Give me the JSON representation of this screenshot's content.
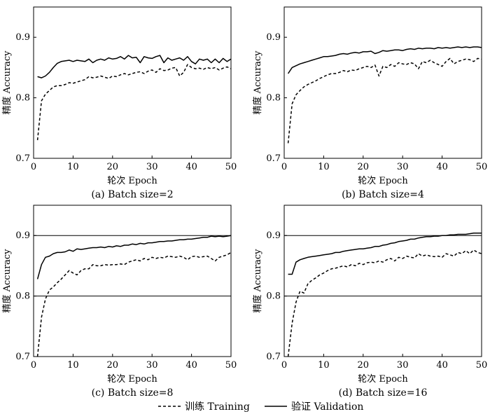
{
  "chart_data": [
    {
      "type": "line",
      "caption": "(a) Batch size=2",
      "xlabel": "轮次 Epoch",
      "ylabel": "精度 Accuracy",
      "xlim": [
        0,
        50
      ],
      "ylim": [
        0.7,
        0.95
      ],
      "xticks": [
        0,
        10,
        20,
        30,
        40,
        50
      ],
      "yticks": [
        0.7,
        0.8,
        0.9
      ],
      "ref_lines": [],
      "x": [
        1,
        2,
        3,
        4,
        5,
        6,
        7,
        8,
        9,
        10,
        11,
        12,
        13,
        14,
        15,
        16,
        17,
        18,
        19,
        20,
        21,
        22,
        23,
        24,
        25,
        26,
        27,
        28,
        29,
        30,
        31,
        32,
        33,
        34,
        35,
        36,
        37,
        38,
        39,
        40,
        41,
        42,
        43,
        44,
        45,
        46,
        47,
        48,
        49,
        50
      ],
      "series": [
        {
          "name": "训练 Training",
          "style": "dashed",
          "values": [
            0.73,
            0.795,
            0.806,
            0.812,
            0.818,
            0.82,
            0.82,
            0.822,
            0.825,
            0.824,
            0.826,
            0.828,
            0.83,
            0.835,
            0.833,
            0.834,
            0.836,
            0.834,
            0.832,
            0.836,
            0.835,
            0.838,
            0.84,
            0.838,
            0.84,
            0.842,
            0.843,
            0.84,
            0.844,
            0.846,
            0.842,
            0.848,
            0.845,
            0.846,
            0.849,
            0.85,
            0.836,
            0.842,
            0.855,
            0.85,
            0.848,
            0.849,
            0.847,
            0.85,
            0.848,
            0.85,
            0.846,
            0.849,
            0.851,
            0.848
          ]
        },
        {
          "name": "验证 Validation",
          "style": "solid",
          "values": [
            0.835,
            0.833,
            0.836,
            0.842,
            0.85,
            0.857,
            0.86,
            0.861,
            0.862,
            0.86,
            0.862,
            0.861,
            0.86,
            0.864,
            0.858,
            0.862,
            0.864,
            0.862,
            0.866,
            0.864,
            0.865,
            0.868,
            0.864,
            0.87,
            0.866,
            0.867,
            0.858,
            0.868,
            0.866,
            0.865,
            0.868,
            0.87,
            0.858,
            0.866,
            0.862,
            0.864,
            0.866,
            0.862,
            0.868,
            0.86,
            0.856,
            0.864,
            0.862,
            0.864,
            0.858,
            0.864,
            0.858,
            0.865,
            0.86,
            0.864
          ]
        }
      ]
    },
    {
      "type": "line",
      "caption": "(b) Batch size=4",
      "xlabel": "轮次 Epoch",
      "ylabel": "精度 Accuracy",
      "xlim": [
        0,
        50
      ],
      "ylim": [
        0.7,
        0.95
      ],
      "xticks": [
        0,
        10,
        20,
        30,
        40,
        50
      ],
      "yticks": [
        0.7,
        0.8,
        0.9
      ],
      "ref_lines": [],
      "x": [
        1,
        2,
        3,
        4,
        5,
        6,
        7,
        8,
        9,
        10,
        11,
        12,
        13,
        14,
        15,
        16,
        17,
        18,
        19,
        20,
        21,
        22,
        23,
        24,
        25,
        26,
        27,
        28,
        29,
        30,
        31,
        32,
        33,
        34,
        35,
        36,
        37,
        38,
        39,
        40,
        41,
        42,
        43,
        44,
        45,
        46,
        47,
        48,
        49,
        50
      ],
      "series": [
        {
          "name": "训练 Training",
          "style": "dashed",
          "values": [
            0.725,
            0.79,
            0.805,
            0.812,
            0.818,
            0.822,
            0.825,
            0.828,
            0.832,
            0.835,
            0.838,
            0.84,
            0.84,
            0.842,
            0.845,
            0.843,
            0.846,
            0.845,
            0.848,
            0.85,
            0.852,
            0.85,
            0.854,
            0.836,
            0.852,
            0.85,
            0.855,
            0.852,
            0.858,
            0.856,
            0.855,
            0.858,
            0.856,
            0.848,
            0.86,
            0.858,
            0.862,
            0.858,
            0.855,
            0.852,
            0.86,
            0.865,
            0.856,
            0.86,
            0.862,
            0.864,
            0.863,
            0.86,
            0.865,
            0.864
          ]
        },
        {
          "name": "验证 Validation",
          "style": "solid",
          "values": [
            0.84,
            0.85,
            0.853,
            0.856,
            0.858,
            0.86,
            0.862,
            0.864,
            0.866,
            0.868,
            0.868,
            0.869,
            0.87,
            0.872,
            0.873,
            0.872,
            0.874,
            0.875,
            0.874,
            0.876,
            0.876,
            0.877,
            0.873,
            0.875,
            0.878,
            0.877,
            0.878,
            0.879,
            0.879,
            0.878,
            0.88,
            0.881,
            0.88,
            0.882,
            0.881,
            0.882,
            0.882,
            0.881,
            0.883,
            0.882,
            0.883,
            0.882,
            0.883,
            0.884,
            0.883,
            0.884,
            0.883,
            0.884,
            0.884,
            0.883
          ]
        }
      ]
    },
    {
      "type": "line",
      "caption": "(c) Batch size=8",
      "xlabel": "轮次 Epoch",
      "ylabel": "精度 Accuracy",
      "xlim": [
        0,
        50
      ],
      "ylim": [
        0.7,
        0.95
      ],
      "xticks": [
        0,
        10,
        20,
        30,
        40,
        50
      ],
      "yticks": [
        0.7,
        0.8,
        0.9
      ],
      "ref_lines": [
        0.8,
        0.9
      ],
      "x": [
        1,
        2,
        3,
        4,
        5,
        6,
        7,
        8,
        9,
        10,
        11,
        12,
        13,
        14,
        15,
        16,
        17,
        18,
        19,
        20,
        21,
        22,
        23,
        24,
        25,
        26,
        27,
        28,
        29,
        30,
        31,
        32,
        33,
        34,
        35,
        36,
        37,
        38,
        39,
        40,
        41,
        42,
        43,
        44,
        45,
        46,
        47,
        48,
        49,
        50
      ],
      "series": [
        {
          "name": "训练 Training",
          "style": "dashed",
          "values": [
            0.7,
            0.765,
            0.795,
            0.81,
            0.815,
            0.822,
            0.828,
            0.835,
            0.842,
            0.838,
            0.835,
            0.842,
            0.845,
            0.845,
            0.852,
            0.85,
            0.85,
            0.852,
            0.851,
            0.852,
            0.852,
            0.853,
            0.852,
            0.856,
            0.858,
            0.86,
            0.858,
            0.862,
            0.86,
            0.864,
            0.862,
            0.864,
            0.863,
            0.866,
            0.865,
            0.864,
            0.866,
            0.864,
            0.86,
            0.865,
            0.866,
            0.864,
            0.865,
            0.866,
            0.862,
            0.858,
            0.864,
            0.866,
            0.868,
            0.872
          ]
        },
        {
          "name": "验证 Validation",
          "style": "solid",
          "values": [
            0.828,
            0.852,
            0.864,
            0.866,
            0.87,
            0.872,
            0.872,
            0.873,
            0.876,
            0.874,
            0.878,
            0.877,
            0.878,
            0.879,
            0.88,
            0.88,
            0.881,
            0.88,
            0.882,
            0.881,
            0.883,
            0.882,
            0.884,
            0.884,
            0.886,
            0.885,
            0.887,
            0.886,
            0.888,
            0.888,
            0.889,
            0.89,
            0.89,
            0.891,
            0.891,
            0.892,
            0.893,
            0.893,
            0.894,
            0.894,
            0.895,
            0.896,
            0.897,
            0.897,
            0.899,
            0.898,
            0.899,
            0.898,
            0.899,
            0.9
          ]
        }
      ]
    },
    {
      "type": "line",
      "caption": "(d) Batch size=16",
      "xlabel": "轮次 Epoch",
      "ylabel": "精度 Accuracy",
      "xlim": [
        0,
        50
      ],
      "ylim": [
        0.7,
        0.95
      ],
      "xticks": [
        0,
        10,
        20,
        30,
        40,
        50
      ],
      "yticks": [
        0.7,
        0.8,
        0.9
      ],
      "ref_lines": [
        0.8,
        0.9
      ],
      "x": [
        1,
        2,
        3,
        4,
        5,
        6,
        7,
        8,
        9,
        10,
        11,
        12,
        13,
        14,
        15,
        16,
        17,
        18,
        19,
        20,
        21,
        22,
        23,
        24,
        25,
        26,
        27,
        28,
        29,
        30,
        31,
        32,
        33,
        34,
        35,
        36,
        37,
        38,
        39,
        40,
        41,
        42,
        43,
        44,
        45,
        46,
        47,
        48,
        49,
        50
      ],
      "series": [
        {
          "name": "训练 Training",
          "style": "dashed",
          "values": [
            0.7,
            0.755,
            0.79,
            0.808,
            0.805,
            0.82,
            0.826,
            0.83,
            0.835,
            0.838,
            0.842,
            0.845,
            0.846,
            0.848,
            0.85,
            0.848,
            0.852,
            0.85,
            0.854,
            0.852,
            0.855,
            0.856,
            0.855,
            0.858,
            0.856,
            0.86,
            0.862,
            0.858,
            0.864,
            0.862,
            0.866,
            0.864,
            0.863,
            0.87,
            0.866,
            0.868,
            0.866,
            0.865,
            0.866,
            0.864,
            0.87,
            0.868,
            0.866,
            0.872,
            0.87,
            0.875,
            0.87,
            0.876,
            0.872,
            0.87
          ]
        },
        {
          "name": "验证 Validation",
          "style": "solid",
          "values": [
            0.836,
            0.836,
            0.856,
            0.86,
            0.862,
            0.864,
            0.865,
            0.866,
            0.867,
            0.868,
            0.869,
            0.87,
            0.872,
            0.872,
            0.874,
            0.875,
            0.876,
            0.877,
            0.878,
            0.878,
            0.879,
            0.88,
            0.882,
            0.882,
            0.884,
            0.885,
            0.887,
            0.888,
            0.89,
            0.891,
            0.892,
            0.894,
            0.894,
            0.896,
            0.897,
            0.898,
            0.898,
            0.899,
            0.899,
            0.9,
            0.9,
            0.901,
            0.901,
            0.902,
            0.902,
            0.902,
            0.903,
            0.904,
            0.904,
            0.904
          ]
        }
      ]
    }
  ],
  "legend": {
    "items": [
      {
        "label": "训练 Training",
        "style": "dashed"
      },
      {
        "label": "验证 Validation",
        "style": "solid"
      }
    ]
  }
}
